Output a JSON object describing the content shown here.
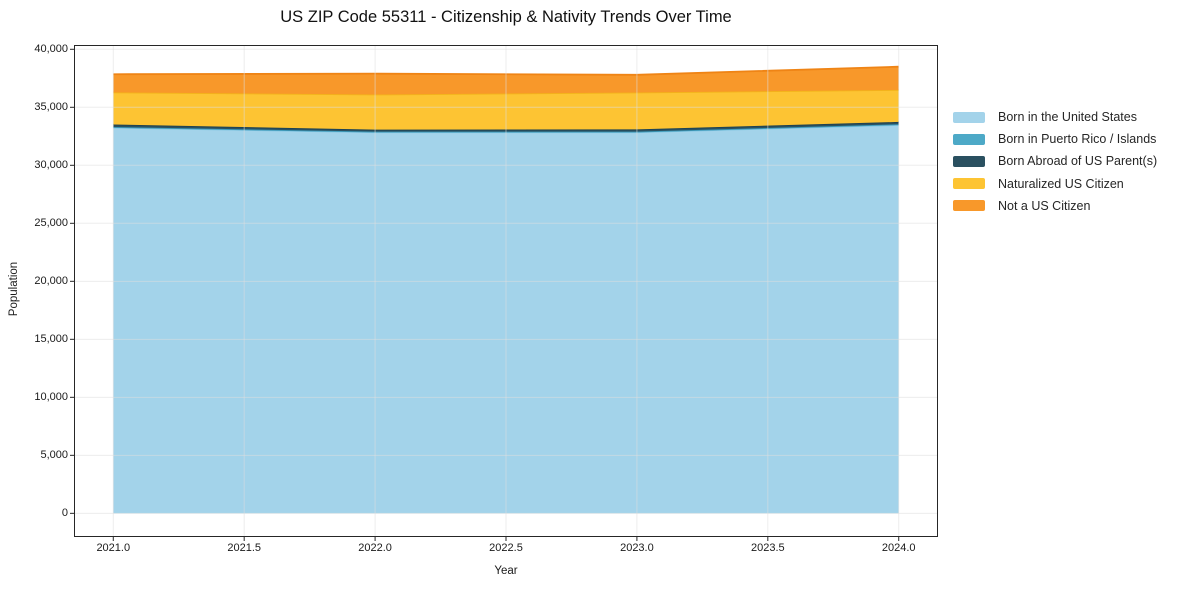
{
  "title": "US ZIP Code 55311 - Citizenship & Nativity Trends Over Time",
  "chart_data": {
    "type": "area",
    "stacked": true,
    "title": "US ZIP Code 55311 - Citizenship & Nativity Trends Over Time",
    "xlabel": "Year",
    "ylabel": "Population",
    "x": [
      2021,
      2022,
      2023,
      2024
    ],
    "series": [
      {
        "id": "born-in-us",
        "name": "Born in the United States",
        "values": [
          33250,
          32850,
          32850,
          33480
        ],
        "fill": "#a3d3ea",
        "line": "#84c6e2"
      },
      {
        "id": "born-pr-islands",
        "name": "Born in Puerto Rico / Islands",
        "values": [
          50,
          50,
          50,
          60
        ],
        "fill": "#4da9c7",
        "line": "#3b98b8"
      },
      {
        "id": "born-abroad",
        "name": "Born Abroad of US Parent(s)",
        "values": [
          220,
          180,
          200,
          200
        ],
        "fill": "#2a5060",
        "line": "#1e4252"
      },
      {
        "id": "naturalized",
        "name": "Naturalized US Citizen",
        "values": [
          2770,
          3020,
          3180,
          2760
        ],
        "fill": "#fdc433",
        "line": "#f3b31a"
      },
      {
        "id": "not-citizen",
        "name": "Not a US Citizen",
        "values": [
          1560,
          1800,
          1520,
          2000
        ],
        "fill": "#f8982a",
        "line": "#ef8415"
      }
    ],
    "totals": [
      37850,
      37900,
      37800,
      38500
    ],
    "xlim": [
      2020.85,
      2024.15
    ],
    "ylim": [
      -2040,
      40370
    ],
    "xticks": [
      2021.0,
      2021.5,
      2022.0,
      2022.5,
      2023.0,
      2023.5,
      2024.0
    ],
    "xtick_labels": [
      "2021.0",
      "2021.5",
      "2022.0",
      "2022.5",
      "2023.0",
      "2023.5",
      "2024.0"
    ],
    "yticks": [
      0,
      5000,
      10000,
      15000,
      20000,
      25000,
      30000,
      35000,
      40000
    ],
    "ytick_labels": [
      "0",
      "5,000",
      "10,000",
      "15,000",
      "20,000",
      "25,000",
      "30,000",
      "35,000",
      "40,000"
    ],
    "grid": true,
    "grid_color": "#dedede",
    "spine_color": "#262626",
    "legend_position": "right"
  }
}
